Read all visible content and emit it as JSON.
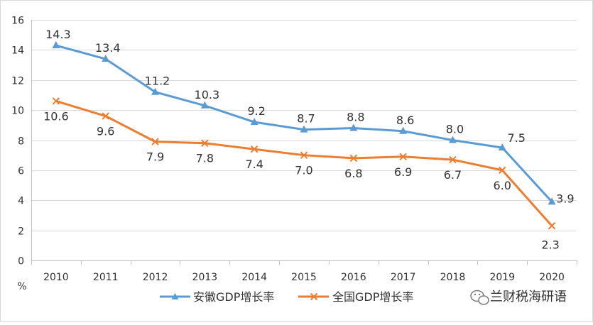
{
  "chart_data": {
    "type": "line",
    "x": [
      "2010",
      "2011",
      "2012",
      "2013",
      "2014",
      "2015",
      "2016",
      "2017",
      "2018",
      "2019",
      "2020"
    ],
    "series": [
      {
        "name": "安徽GDP增长率",
        "values": [
          14.3,
          13.4,
          11.2,
          10.3,
          9.2,
          8.7,
          8.8,
          8.6,
          8.0,
          7.5,
          3.9
        ],
        "labels": [
          "14.3",
          "13.4",
          "11.2",
          "10.3",
          "9.2",
          "8.7",
          "8.8",
          "8.6",
          "8.0",
          "7.5",
          "3.9"
        ],
        "color": "#5B9BD5",
        "marker": "triangle"
      },
      {
        "name": "全国GDP增长率",
        "values": [
          10.6,
          9.6,
          7.9,
          7.8,
          7.4,
          7.0,
          6.8,
          6.9,
          6.7,
          6.0,
          2.3
        ],
        "labels": [
          "10.6",
          "9.6",
          "7.9",
          "7.8",
          "7.4",
          "7.0",
          "6.8",
          "6.9",
          "6.7",
          "6.0",
          "2.3"
        ],
        "color": "#ED7D31",
        "marker": "x"
      }
    ],
    "ylim": [
      0,
      16
    ],
    "yticks": [
      "0",
      "2",
      "4",
      "6",
      "8",
      "10",
      "12",
      "14",
      "16"
    ],
    "unit_label": "%",
    "grid": true,
    "legend_position": "bottom"
  },
  "watermark": {
    "text": "兰财税海研语",
    "icon": "wechat-icon"
  }
}
